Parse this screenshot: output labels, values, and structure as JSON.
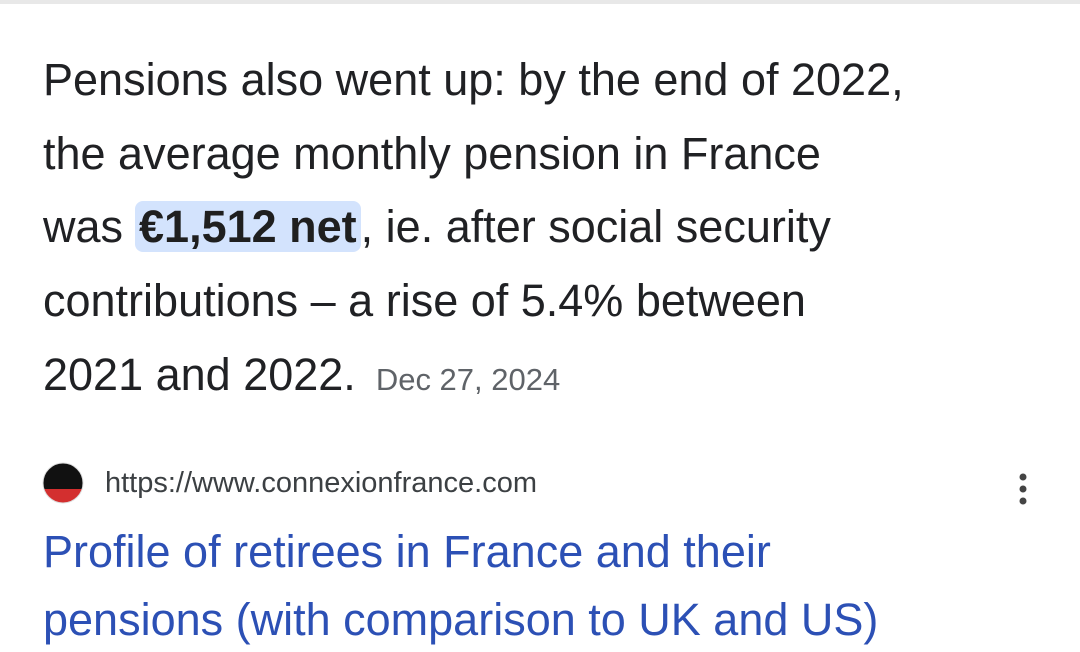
{
  "snippet": {
    "lines": [
      "Pensions also went up: by the end of 2022,",
      "the average monthly pension in France",
      {
        "before": "was",
        "highlight": "€1,512 net",
        "after": ", ie. after social security"
      },
      "contributions – a rise of 5.4% between",
      "2021 and 2022."
    ],
    "date": "Dec 27, 2024"
  },
  "result": {
    "url": "https://www.connexionfrance.com",
    "title_lines": [
      "Profile of retirees in France and their",
      "pensions (with comparison to UK and US)"
    ]
  }
}
